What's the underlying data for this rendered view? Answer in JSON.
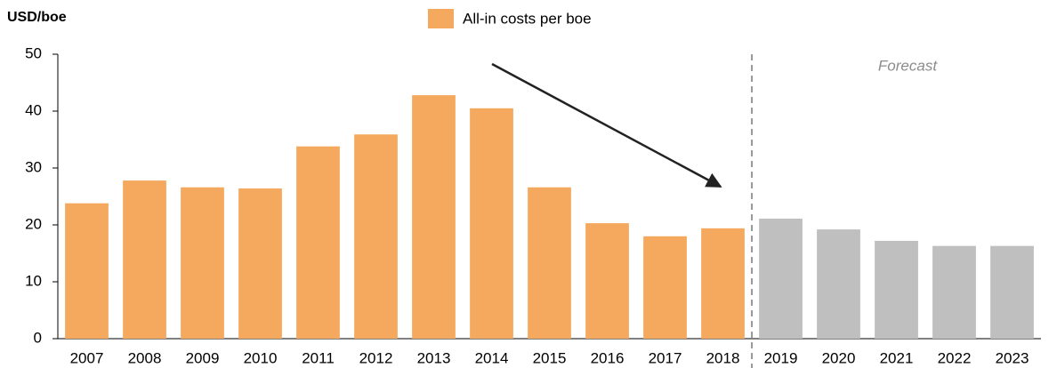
{
  "chart_data": {
    "type": "bar",
    "y_label": "USD/boe",
    "annotation": "Forecast",
    "categories": [
      "2007",
      "2008",
      "2009",
      "2010",
      "2011",
      "2012",
      "2013",
      "2014",
      "2015",
      "2016",
      "2017",
      "2018",
      "2019",
      "2020",
      "2021",
      "2022",
      "2023"
    ],
    "series": [
      {
        "name": "All-in costs per boe",
        "color": "#f4a95f",
        "values": [
          23.8,
          27.8,
          26.6,
          26.4,
          33.8,
          35.9,
          42.8,
          40.5,
          26.6,
          20.3,
          18.0,
          19.4,
          21.1,
          19.2,
          17.2,
          16.3,
          16.3
        ],
        "colors": [
          "#f4a95f",
          "#f4a95f",
          "#f4a95f",
          "#f4a95f",
          "#f4a95f",
          "#f4a95f",
          "#f4a95f",
          "#f4a95f",
          "#f4a95f",
          "#f4a95f",
          "#f4a95f",
          "#f4a95f",
          "#bfbfbf",
          "#bfbfbf",
          "#bfbfbf",
          "#bfbfbf",
          "#bfbfbf"
        ]
      }
    ],
    "ylim": [
      0,
      50
    ],
    "yticks": [
      0,
      10,
      20,
      30,
      40,
      50
    ],
    "grid": false
  }
}
